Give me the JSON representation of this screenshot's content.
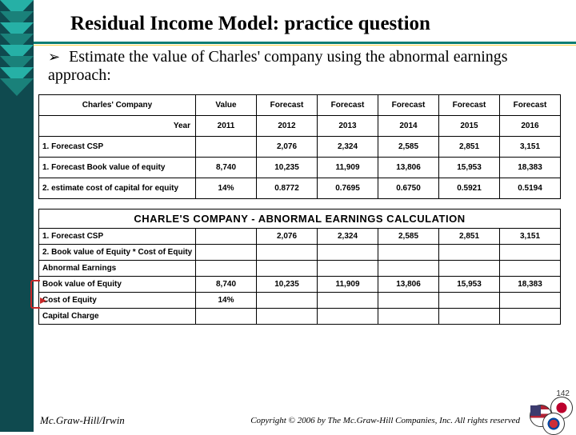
{
  "title": "Residual Income Model:  practice question",
  "bullet": "Estimate the value of Charles' company using the abnormal earnings approach:",
  "table1": {
    "header": {
      "company": "Charles' Company",
      "value": "Value",
      "fc": "Forecast"
    },
    "yearLabel": "Year",
    "years": [
      "2011",
      "2012",
      "2013",
      "2014",
      "2015",
      "2016"
    ],
    "rows": [
      {
        "label": "1. Forecast CSP",
        "vals": [
          "",
          "2,076",
          "2,324",
          "2,585",
          "2,851",
          "3,151"
        ]
      },
      {
        "label": "1. Forecast Book value of equity",
        "vals": [
          "8,740",
          "10,235",
          "11,909",
          "13,806",
          "15,953",
          "18,383"
        ]
      },
      {
        "label": "2. estimate cost of capital for equity",
        "vals": [
          "14%",
          "0.8772",
          "0.7695",
          "0.6750",
          "0.5921",
          "0.5194"
        ]
      }
    ]
  },
  "table2": {
    "title": "CHARLE'S COMPANY - ABNORMAL EARNINGS CALCULATION",
    "rows": [
      {
        "label": "1. Forecast CSP",
        "vals": [
          "",
          "2,076",
          "2,324",
          "2,585",
          "2,851",
          "3,151"
        ]
      },
      {
        "label": "2. Book value of Equity * Cost of Equity",
        "vals": [
          "",
          "",
          "",
          "",
          "",
          ""
        ]
      },
      {
        "label": "Abnormal Earnings",
        "vals": [
          "",
          "",
          "",
          "",
          "",
          ""
        ]
      },
      {
        "label": "Book value of Equity",
        "vals": [
          "8,740",
          "10,235",
          "11,909",
          "13,806",
          "15,953",
          "18,383"
        ]
      },
      {
        "label": "Cost of Equity",
        "vals": [
          "14%",
          "",
          "",
          "",
          "",
          ""
        ]
      },
      {
        "label": "Capital Charge",
        "vals": [
          "",
          "",
          "",
          "",
          "",
          ""
        ]
      }
    ]
  },
  "footer": {
    "publisher": "Mc.Graw-Hill/Irwin",
    "copyright": "Copyright © 2006 by The Mc.Graw-Hill Companies, Inc. All rights reserved"
  },
  "pagenum": "142",
  "colors": {
    "leftbar": "#0f4a4f",
    "chev1": "#26b0a6",
    "chev2": "#1a817a",
    "rule": "#0b7d73",
    "accent": "#ffd54a"
  }
}
